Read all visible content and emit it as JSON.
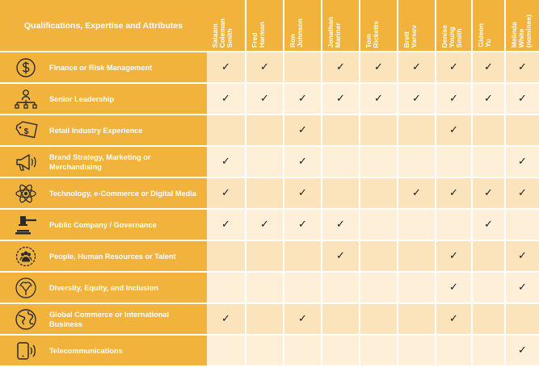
{
  "header": {
    "title": "Qualifications, Expertise and Attributes",
    "columns": [
      "Salaam\nColeman\nSmith",
      "Fred\nHarman",
      "Ron\nJohnson",
      "Jonathan\nMariner",
      "Tom\nRicketts",
      "Brett\nVarsov",
      "Denise\nYoung\nSmith",
      "Gideon\nYu",
      "Melinda\nWhite\n(nominee)"
    ]
  },
  "check_glyph": "✓",
  "colors": {
    "header_bg": "#f2b33d",
    "label_bg": "#f2b33d",
    "row_odd": "#fbe3bc",
    "row_even": "#fdefd8",
    "divider": "#ffffff",
    "check": "#1a1a1a"
  },
  "rows": [
    {
      "icon": "dollar-circle-icon",
      "label": "Finance or Risk Management",
      "checks": [
        true,
        true,
        false,
        true,
        true,
        true,
        true,
        true,
        true
      ]
    },
    {
      "icon": "org-chart-icon",
      "label": "Senior Leadership",
      "checks": [
        true,
        true,
        true,
        true,
        true,
        true,
        true,
        true,
        true
      ]
    },
    {
      "icon": "price-tag-icon",
      "label": "Retail Industry Experience",
      "checks": [
        false,
        false,
        true,
        false,
        false,
        false,
        true,
        false,
        false
      ]
    },
    {
      "icon": "megaphone-icon",
      "label": "Brand Strategy, Marketing or\nMerchandising",
      "checks": [
        true,
        false,
        true,
        false,
        false,
        false,
        false,
        false,
        true
      ]
    },
    {
      "icon": "atom-icon",
      "label": "Technology, e-Commerce or Digital Media",
      "checks": [
        true,
        false,
        true,
        false,
        false,
        true,
        true,
        true,
        true
      ]
    },
    {
      "icon": "gavel-icon",
      "label": "Public Company / Governance",
      "checks": [
        true,
        true,
        true,
        true,
        false,
        false,
        false,
        true,
        false
      ]
    },
    {
      "icon": "people-circle-icon",
      "label": "People, Human Resources or Talent",
      "checks": [
        false,
        false,
        false,
        true,
        false,
        false,
        true,
        false,
        true
      ]
    },
    {
      "icon": "diversity-hands-icon",
      "label": "Diversity, Equity, and Inclusion",
      "checks": [
        false,
        false,
        false,
        false,
        false,
        false,
        true,
        false,
        true
      ]
    },
    {
      "icon": "globe-icon",
      "label": "Global Commerce or International\nBusiness",
      "checks": [
        true,
        false,
        true,
        false,
        false,
        false,
        true,
        false,
        false
      ]
    },
    {
      "icon": "phone-signal-icon",
      "label": "Telecommunications",
      "checks": [
        false,
        false,
        false,
        false,
        false,
        false,
        false,
        false,
        true
      ]
    }
  ]
}
